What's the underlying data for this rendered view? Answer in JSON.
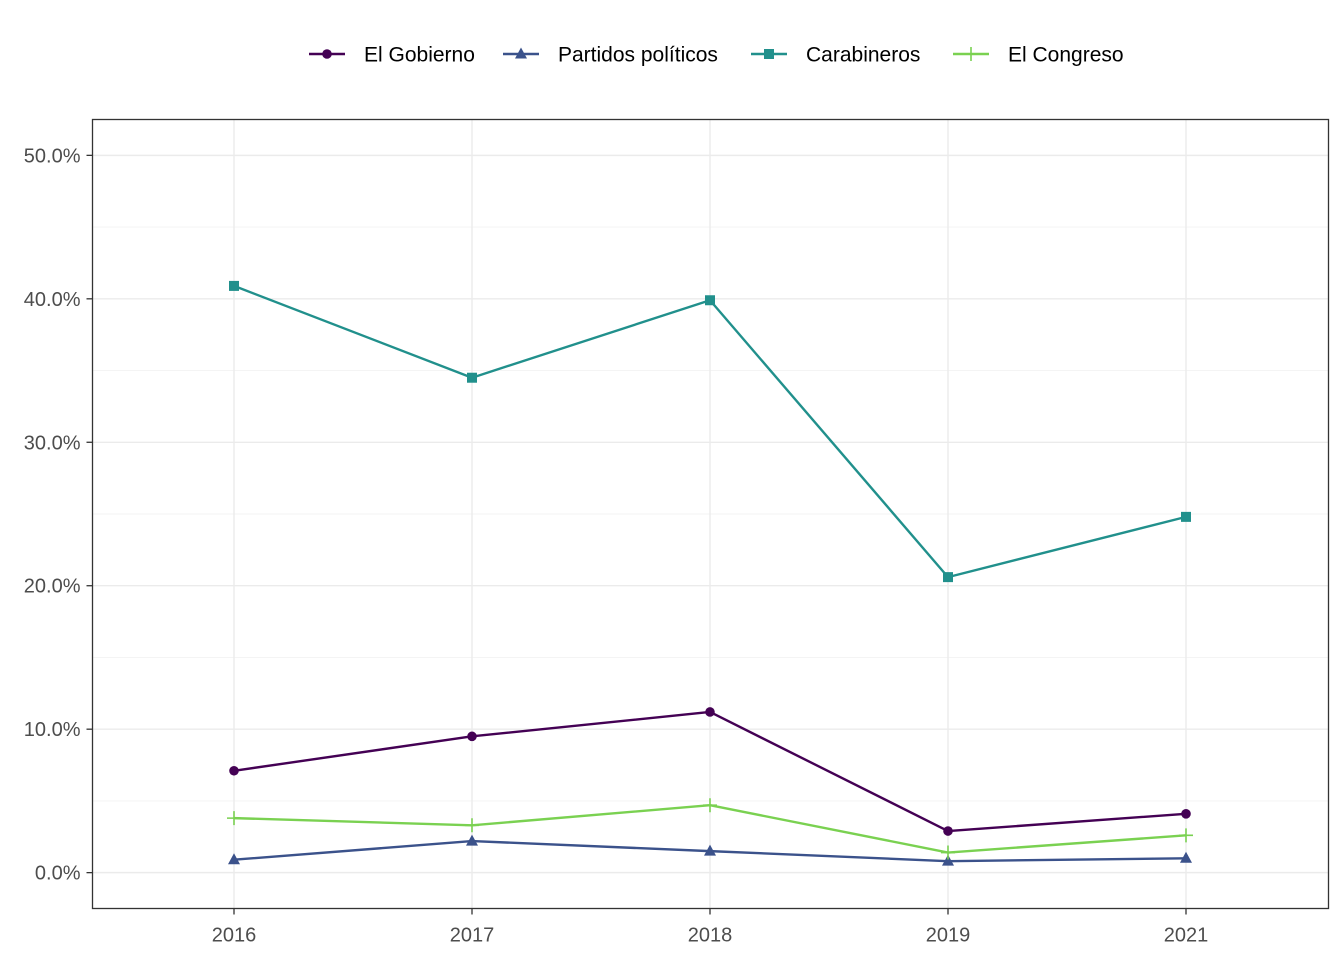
{
  "chart_data": {
    "type": "line",
    "title": "",
    "xlabel": "",
    "ylabel": "",
    "categories": [
      "2016",
      "2017",
      "2018",
      "2019",
      "2021"
    ],
    "ylim": [
      -0.025,
      0.525
    ],
    "yticks": [
      0.0,
      0.1,
      0.2,
      0.3,
      0.4,
      0.5
    ],
    "ytick_labels": [
      "0.0%",
      "10.0%",
      "20.0%",
      "30.0%",
      "40.0%",
      "50.0%"
    ],
    "grid": true,
    "legend_position": "top",
    "series": [
      {
        "name": "El Gobierno",
        "color": "#440154",
        "marker": "circle",
        "values": [
          0.071,
          0.095,
          0.112,
          0.029,
          0.041
        ]
      },
      {
        "name": "Partidos políticos",
        "color": "#3b528b",
        "marker": "triangle",
        "values": [
          0.009,
          0.022,
          0.015,
          0.008,
          0.01
        ]
      },
      {
        "name": "Carabineros",
        "color": "#21908c",
        "marker": "square",
        "values": [
          0.409,
          0.345,
          0.399,
          0.206,
          0.248
        ]
      },
      {
        "name": "El Congreso",
        "color": "#7ad151",
        "marker": "plus",
        "values": [
          0.038,
          0.033,
          0.047,
          0.014,
          0.026
        ]
      }
    ]
  }
}
